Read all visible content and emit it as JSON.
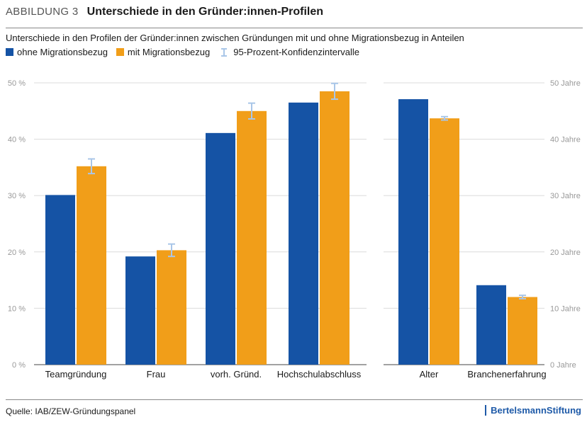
{
  "header": {
    "figure_label": "ABBILDUNG 3",
    "title": "Unterschiede in den Gründer:innen-Profilen",
    "subtitle": "Unterschiede in den Profilen der Gründer:innen zwischen Gründungen mit und ohne Migrationsbezug in Anteilen"
  },
  "legend": {
    "series1": "ohne Migrationsbezug",
    "series2": "mit Migrationsbezug",
    "ci": "95-Prozent-Konfidenzintervalle"
  },
  "colors": {
    "series1": "#1553a5",
    "series2": "#f19e19",
    "ci": "#a9c6e8"
  },
  "chart_data": [
    {
      "type": "bar",
      "categories": [
        "Teamgründung",
        "Frau",
        "vorh. Gründ.",
        "Hochschulabschluss"
      ],
      "series": [
        {
          "name": "ohne Migrationsbezug",
          "values": [
            30.1,
            19.2,
            41.1,
            46.5
          ]
        },
        {
          "name": "mit Migrationsbezug",
          "values": [
            35.2,
            20.3,
            45.0,
            48.5
          ],
          "ci": [
            [
              33.9,
              36.5
            ],
            [
              19.2,
              21.4
            ],
            [
              43.6,
              46.4
            ],
            [
              47.1,
              49.9
            ]
          ]
        }
      ],
      "yticks": [
        "0 %",
        "10 %",
        "20 %",
        "30 %",
        "40 %",
        "50 %"
      ],
      "ylim": [
        0,
        50
      ],
      "grid": true
    },
    {
      "type": "bar",
      "categories": [
        "Alter",
        "Branchenerfahrung"
      ],
      "series": [
        {
          "name": "ohne Migrationsbezug",
          "values": [
            47.1,
            14.1
          ]
        },
        {
          "name": "mit Migrationsbezug",
          "values": [
            43.7,
            12.0
          ],
          "ci": [
            [
              43.4,
              44.0
            ],
            [
              11.7,
              12.3
            ]
          ]
        }
      ],
      "yticks": [
        "0 Jahre",
        "10 Jahre",
        "20 Jahre",
        "30 Jahre",
        "40 Jahre",
        "50 Jahre"
      ],
      "ylim": [
        0,
        50
      ],
      "grid": true
    }
  ],
  "footer": {
    "source": "Quelle: IAB/ZEW-Gründungspanel",
    "brand": "BertelsmannStiftung"
  }
}
